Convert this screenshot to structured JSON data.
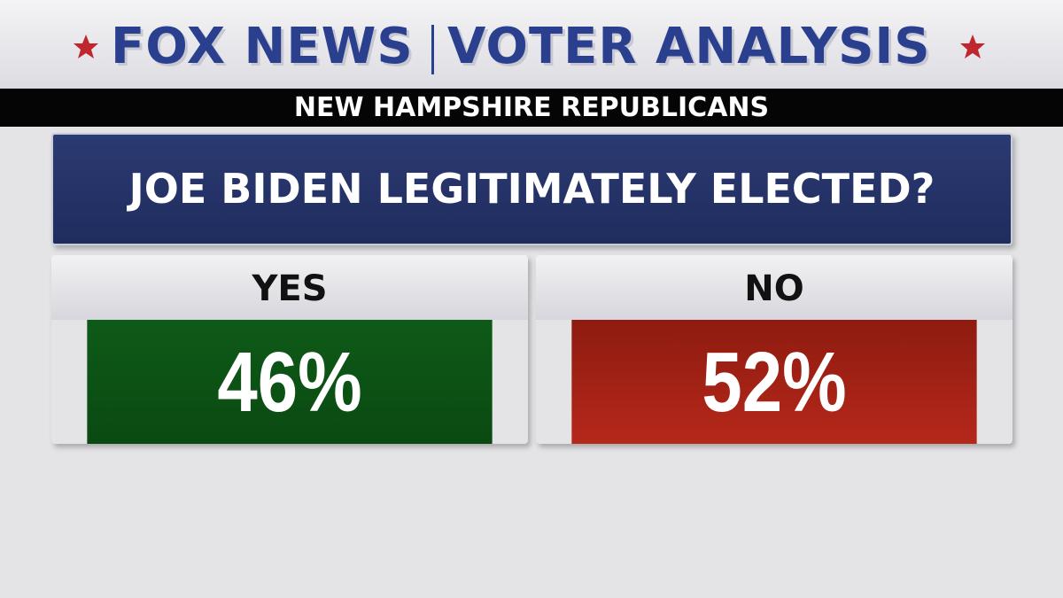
{
  "header": {
    "brand": "FOX NEWS",
    "title": "VOTER ANALYSIS",
    "subtitle": "NEW HAMPSHIRE REPUBLICANS"
  },
  "question": "JOE BIDEN LEGITIMATELY ELECTED?",
  "answers": [
    {
      "label": "YES",
      "value": "46%"
    },
    {
      "label": "NO",
      "value": "52%"
    }
  ]
}
